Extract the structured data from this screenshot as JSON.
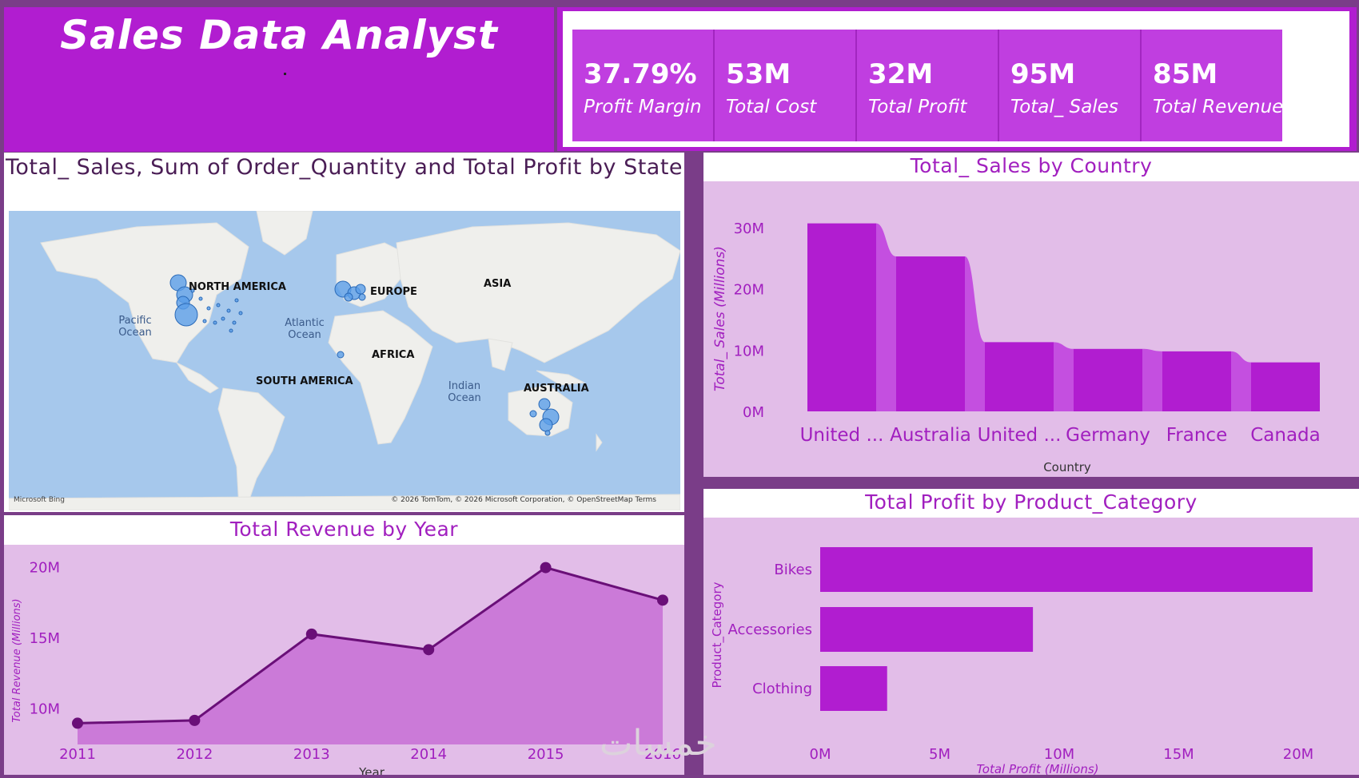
{
  "header": {
    "title": "Sales Data Analyst"
  },
  "kpis": [
    {
      "value": "37.79%",
      "label": "Profit Margin"
    },
    {
      "value": "53M",
      "label": "Total Cost"
    },
    {
      "value": "32M",
      "label": "Total Profit"
    },
    {
      "value": "95M",
      "label": "Total_ Sales"
    },
    {
      "value": "85M",
      "label": "Total Revenue"
    }
  ],
  "map": {
    "title": "Total_ Sales, Sum of Order_Quantity and Total Profit by State",
    "continents": [
      "NORTH AMERICA",
      "EUROPE",
      "ASIA",
      "AFRICA",
      "SOUTH AMERICA",
      "AUSTRALIA"
    ],
    "oceans": [
      "Pacific Ocean",
      "Atlantic Ocean",
      "Indian Ocean"
    ],
    "logo": "Microsoft Bing",
    "credit": "© 2026 TomTom, © 2026 Microsoft Corporation, © OpenStreetMap  Terms",
    "bubble_color": "#4a90e2"
  },
  "colors": {
    "accent": "#b11dd0",
    "kpi_card": "#c03ee0",
    "plot_bg": "#e2bde8",
    "title_text": "#a11fbf",
    "line": "#6a0f78",
    "area": "#cb7ad8"
  },
  "watermark": "خمسات",
  "chart_data": [
    {
      "type": "area",
      "title": "Total Revenue by Year",
      "xlabel": "Year",
      "ylabel": "Total Revenue (Millions)",
      "x": [
        2011,
        2012,
        2013,
        2014,
        2015,
        2016
      ],
      "values": [
        9.0,
        9.2,
        15.3,
        14.2,
        20.0,
        17.7
      ],
      "ylim": [
        7.5,
        21.5
      ],
      "yticks": [
        "10M",
        "15M",
        "20M"
      ],
      "ytick_values": [
        10,
        15,
        20
      ],
      "grid": false
    },
    {
      "type": "bar",
      "title": "Total_ Sales by Country",
      "xlabel": "Country",
      "ylabel": "Total_ Sales (Millions)",
      "categories": [
        "United ...",
        "Australia",
        "United ...",
        "Germany",
        "France",
        "Canada"
      ],
      "values": [
        30.7,
        25.3,
        11.3,
        10.2,
        9.8,
        8.0
      ],
      "ylim": [
        0,
        30
      ],
      "yticks": [
        "0M",
        "10M",
        "20M",
        "30M"
      ],
      "ytick_values": [
        0,
        10,
        20,
        30
      ],
      "grid": false
    },
    {
      "type": "bar",
      "orientation": "horizontal",
      "title": "Total Profit by Product_Category",
      "xlabel": "Total Profit (Millions)",
      "ylabel": "Product_Category",
      "categories": [
        "Bikes",
        "Accessories",
        "Clothing"
      ],
      "values": [
        20.6,
        8.9,
        2.8
      ],
      "xlim": [
        0,
        20
      ],
      "xticks": [
        "0M",
        "5M",
        "10M",
        "15M",
        "20M"
      ],
      "xtick_values": [
        0,
        5,
        10,
        15,
        20
      ],
      "grid": false
    }
  ]
}
